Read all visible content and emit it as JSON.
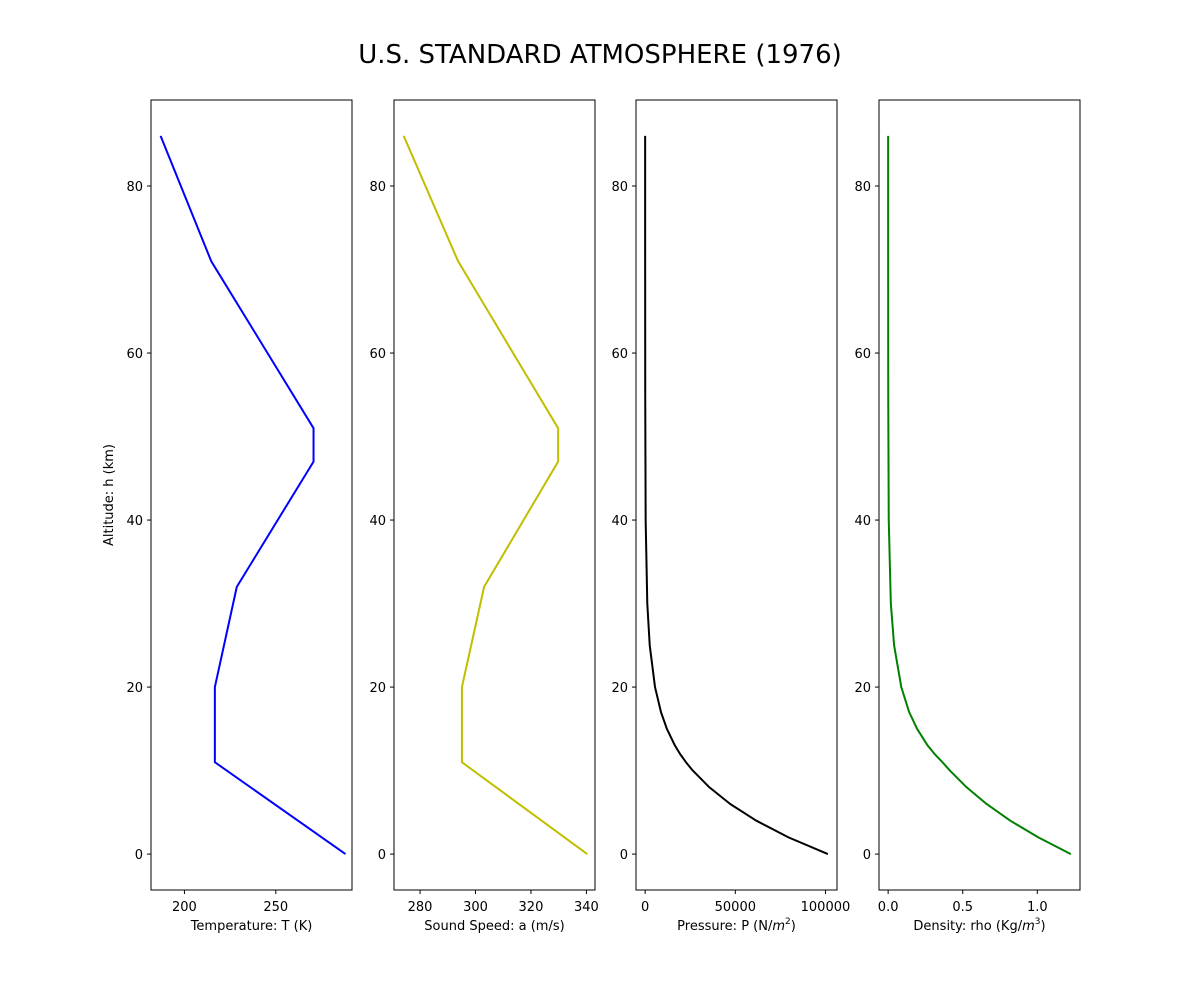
{
  "figure": {
    "title": "U.S. STANDARD ATMOSPHERE (1976)"
  },
  "chart_data": [
    {
      "type": "line",
      "name": "temperature",
      "xlabel": "Temperature: T (K)",
      "xlabel_sup": "",
      "xlabel_tail": "",
      "ylabel": "Altitude: h (km)",
      "color": "#0000ff",
      "xlim": [
        181.7,
        291.7
      ],
      "ylim": [
        -4.3,
        90.3
      ],
      "xticks": [
        200,
        250
      ],
      "xtick_labels": [
        "200",
        "250"
      ],
      "yticks": [
        0,
        20,
        40,
        60,
        80
      ],
      "ytick_labels": [
        "0",
        "20",
        "40",
        "60",
        "80"
      ],
      "x": [
        288.15,
        216.65,
        216.65,
        228.65,
        270.65,
        270.65,
        214.65,
        186.95
      ],
      "y": [
        0,
        11,
        20,
        32,
        47,
        51,
        71,
        86
      ]
    },
    {
      "type": "line",
      "name": "sound_speed",
      "xlabel": "Sound Speed: a (m/s)",
      "xlabel_sup": "",
      "xlabel_tail": "",
      "ylabel": "",
      "color": "#bfbf00",
      "xlim": [
        270.6,
        343.1
      ],
      "ylim": [
        -4.3,
        90.3
      ],
      "xticks": [
        280,
        300,
        320,
        340
      ],
      "xtick_labels": [
        "280",
        "300",
        "320",
        "340"
      ],
      "yticks": [
        0,
        20,
        40,
        60,
        80
      ],
      "ytick_labels": [
        "0",
        "20",
        "40",
        "60",
        "80"
      ],
      "x": [
        340.3,
        295.1,
        295.1,
        303.1,
        329.8,
        329.8,
        293.7,
        274.1
      ],
      "y": [
        0,
        11,
        20,
        32,
        47,
        51,
        71,
        86
      ]
    },
    {
      "type": "line",
      "name": "pressure",
      "xlabel": "Pressure: P (N/",
      "xlabel_sup": "2",
      "xlabel_tail": ")",
      "ylabel": "",
      "color": "#000000",
      "xlim": [
        -5066,
        106391
      ],
      "ylim": [
        -4.3,
        90.3
      ],
      "xticks": [
        0,
        50000,
        100000
      ],
      "xtick_labels": [
        "0",
        "50000",
        "100000"
      ],
      "yticks": [
        0,
        20,
        40,
        60,
        80
      ],
      "ytick_labels": [
        "0",
        "20",
        "40",
        "60",
        "80"
      ],
      "x": [
        101325,
        79495,
        61640,
        47181,
        35600,
        26436,
        22632,
        19330,
        16510,
        12045,
        8786,
        5475,
        2549,
        1197,
        287,
        52,
        3.7,
        0.37
      ],
      "y": [
        0,
        2,
        4,
        6,
        8,
        10,
        11,
        12,
        13,
        15,
        17,
        20,
        25,
        30,
        40,
        55,
        75,
        86
      ]
    },
    {
      "type": "line",
      "name": "density",
      "xlabel": "Density: rho (Kg/",
      "xlabel_sup": "3",
      "xlabel_tail": ")",
      "ylabel": "",
      "color": "#008000",
      "xlim": [
        -0.0613,
        1.2863
      ],
      "ylim": [
        -4.3,
        90.3
      ],
      "xticks": [
        0,
        0.5,
        1.0
      ],
      "xtick_labels": [
        "0.0",
        "0.5",
        "1.0"
      ],
      "yticks": [
        0,
        20,
        40,
        60,
        80
      ],
      "ytick_labels": [
        "0",
        "20",
        "40",
        "60",
        "80"
      ],
      "x": [
        1.225,
        1.007,
        0.819,
        0.66,
        0.526,
        0.414,
        0.364,
        0.311,
        0.265,
        0.194,
        0.141,
        0.088,
        0.04,
        0.018,
        0.004,
        0.0006,
        4e-05,
        7e-06
      ],
      "y": [
        0,
        2,
        4,
        6,
        8,
        10,
        11,
        12,
        13,
        15,
        17,
        20,
        25,
        30,
        40,
        55,
        75,
        86
      ]
    }
  ]
}
